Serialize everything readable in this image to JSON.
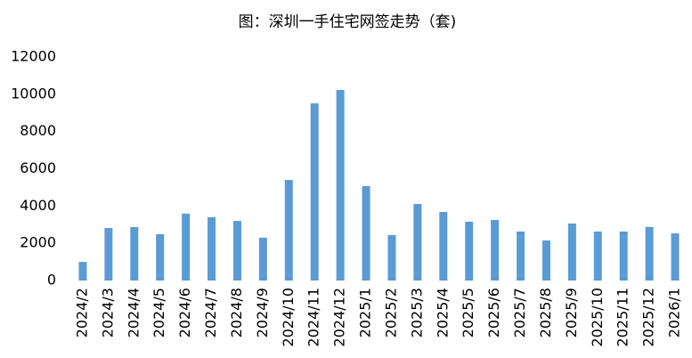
{
  "chart_data": {
    "type": "bar",
    "title": "图：深圳一手住宅网签走势（套)",
    "categories": [
      "2024/2",
      "2024/3",
      "2024/4",
      "2024/5",
      "2024/6",
      "2024/7",
      "2024/8",
      "2024/9",
      "2024/10",
      "2024/11",
      "2024/12",
      "2025/1",
      "2025/2",
      "2025/3",
      "2025/4",
      "2025/5",
      "2025/6",
      "2025/7",
      "2025/8",
      "2025/9",
      "2025/10",
      "2025/11",
      "2025/12",
      "2026/1"
    ],
    "values": [
      1000,
      2820,
      2870,
      2490,
      3590,
      3400,
      3200,
      2300,
      5400,
      9510,
      10230,
      5070,
      2440,
      4110,
      3680,
      3160,
      3250,
      2630,
      2150,
      3060,
      2630,
      2630,
      2870,
      2530
    ],
    "color": "#5b9bd5",
    "ylim": [
      0,
      12000
    ],
    "yticks": [
      0,
      2000,
      4000,
      6000,
      8000,
      10000,
      12000
    ],
    "grid": false
  }
}
